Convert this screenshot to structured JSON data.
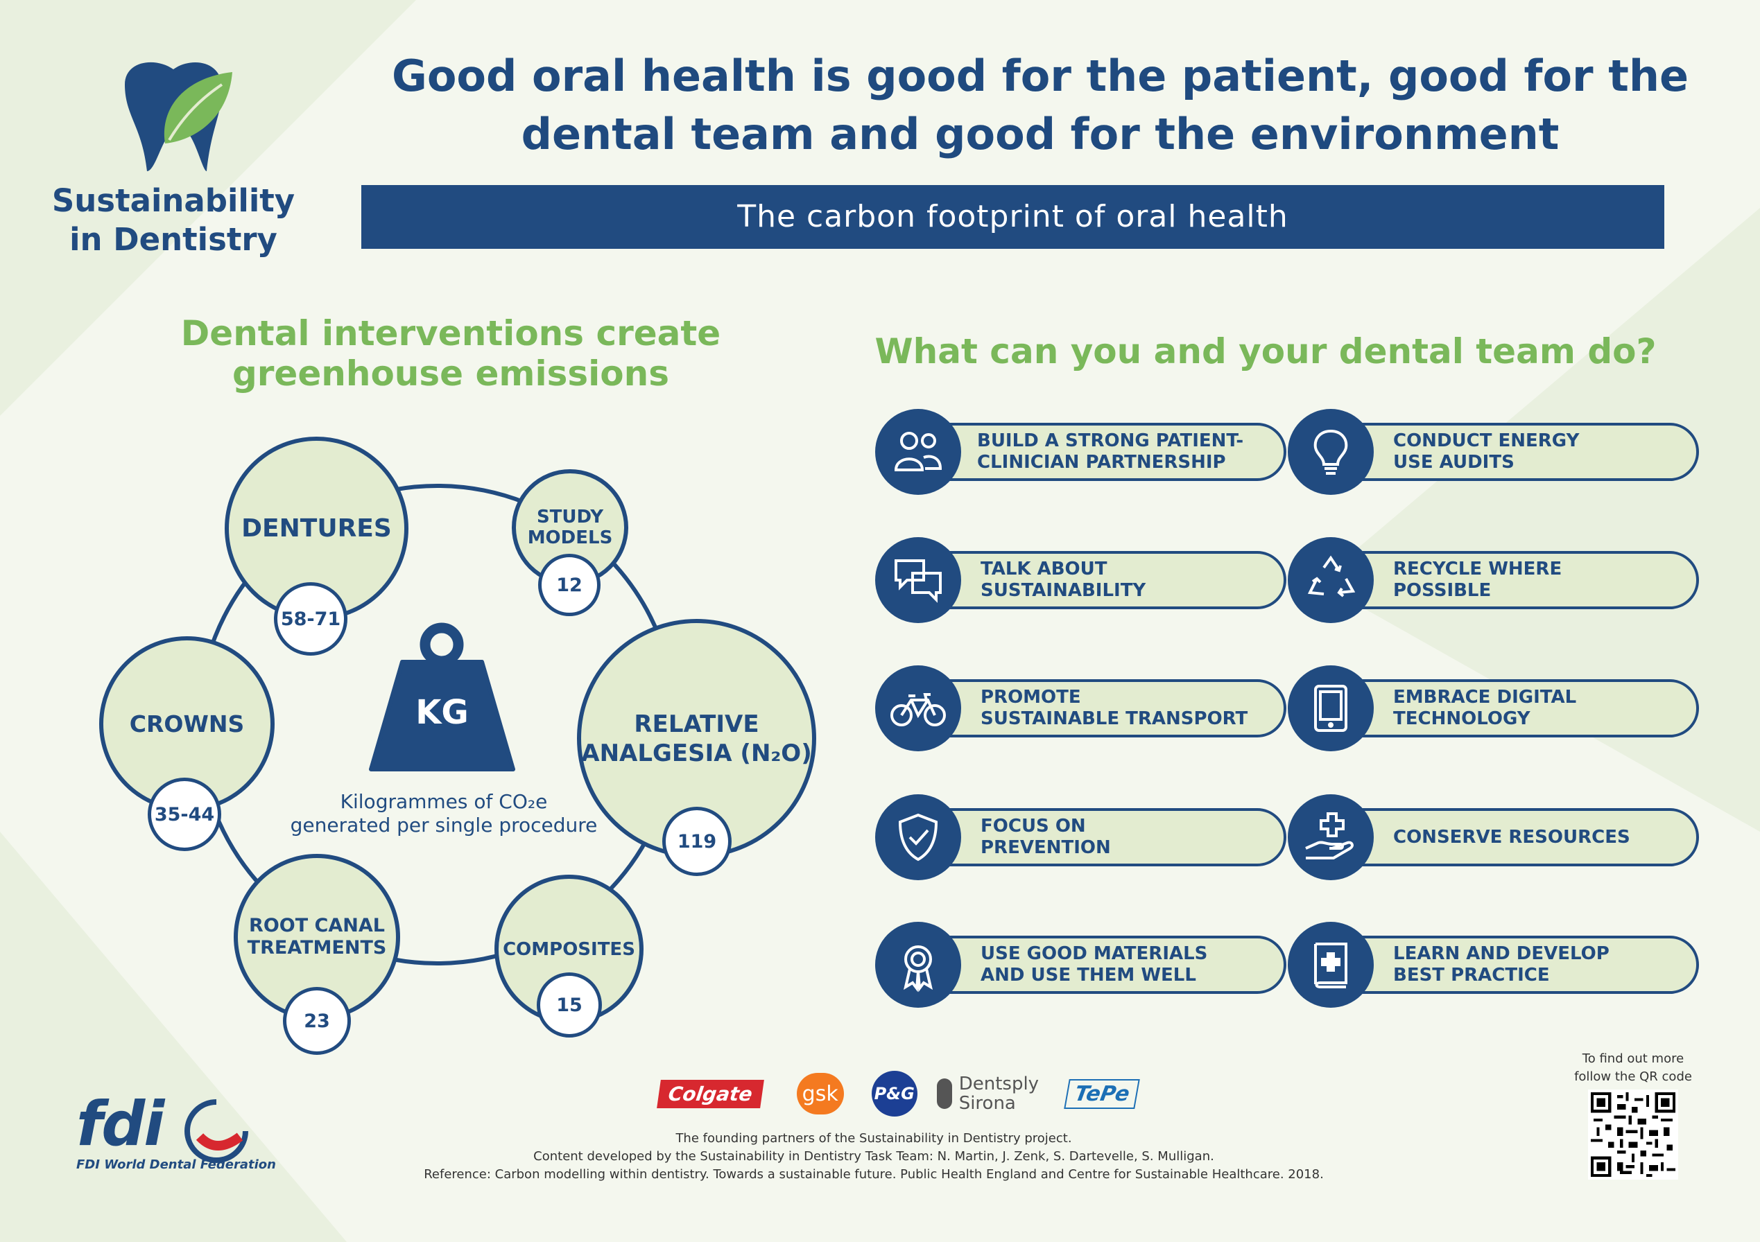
{
  "brand": {
    "line1": "Sustainability",
    "line2": "in Dentistry"
  },
  "title": {
    "line1": "Good oral health is good for the patient, good for the",
    "line2": "dental team and good for the environment"
  },
  "banner": "The carbon footprint of oral health",
  "left": {
    "heading_line1": "Dental interventions create",
    "heading_line2": "greenhouse emissions",
    "weight_label": "KG",
    "caption_line1": "Kilogrammes of CO₂e",
    "caption_line2": "generated per single procedure",
    "procedures": [
      {
        "name_line1": "DENTURES",
        "name_line2": "",
        "value": "58-71"
      },
      {
        "name_line1": "STUDY",
        "name_line2": "MODELS",
        "value": "12"
      },
      {
        "name_line1": "RELATIVE",
        "name_line2": "ANALGESIA (N₂O)",
        "value": "119"
      },
      {
        "name_line1": "COMPOSITES",
        "name_line2": "",
        "value": "15"
      },
      {
        "name_line1": "ROOT CANAL",
        "name_line2": "TREATMENTS",
        "value": "23"
      },
      {
        "name_line1": "CROWNS",
        "name_line2": "",
        "value": "35-44"
      }
    ]
  },
  "right": {
    "heading": "What can you and your dental team do?",
    "actions": [
      {
        "line1": "BUILD A STRONG PATIENT-",
        "line2": "CLINICIAN PARTNERSHIP",
        "icon": "people-icon"
      },
      {
        "line1": "CONDUCT ENERGY",
        "line2": "USE AUDITS",
        "icon": "lightbulb-icon"
      },
      {
        "line1": "TALK ABOUT",
        "line2": "SUSTAINABILITY",
        "icon": "speech-bubbles-icon"
      },
      {
        "line1": "RECYCLE WHERE",
        "line2": "POSSIBLE",
        "icon": "recycle-icon"
      },
      {
        "line1": "PROMOTE",
        "line2": "SUSTAINABLE TRANSPORT",
        "icon": "bicycle-icon"
      },
      {
        "line1": "EMBRACE DIGITAL",
        "line2": "TECHNOLOGY",
        "icon": "tablet-icon"
      },
      {
        "line1": "FOCUS ON",
        "line2": "PREVENTION",
        "icon": "shield-check-icon"
      },
      {
        "line1": "CONSERVE RESOURCES",
        "line2": "",
        "icon": "hand-plus-icon"
      },
      {
        "line1": "USE GOOD MATERIALS",
        "line2": "AND USE THEM WELL",
        "icon": "award-ribbon-icon"
      },
      {
        "line1": "LEARN AND DEVELOP",
        "line2": "BEST PRACTICE",
        "icon": "medical-book-icon"
      }
    ]
  },
  "partners": {
    "colgate": "Colgate",
    "gsk": "gsk",
    "pg": "P&G",
    "dentsply_1": "Dentsply",
    "dentsply_2": "Sirona",
    "tepe": "TePe"
  },
  "footer": {
    "line1": "The founding partners of the Sustainability in Dentistry project.",
    "line2": "Content developed by the Sustainability in Dentistry Task Team: N. Martin, J. Zenk, S. Dartevelle, S. Mulligan.",
    "line3": "Reference: Carbon modelling within dentistry. Towards a sustainable future. Public Health England and Centre for Sustainable Healthcare. 2018."
  },
  "fdi": {
    "logo": "fdi",
    "name": "FDI World Dental Federation"
  },
  "qr": {
    "line1": "To find out more",
    "line2": "follow the QR code"
  },
  "colors": {
    "navy": "#214b80",
    "green": "#7ab85a",
    "pale_green": "#e3ecd0"
  }
}
